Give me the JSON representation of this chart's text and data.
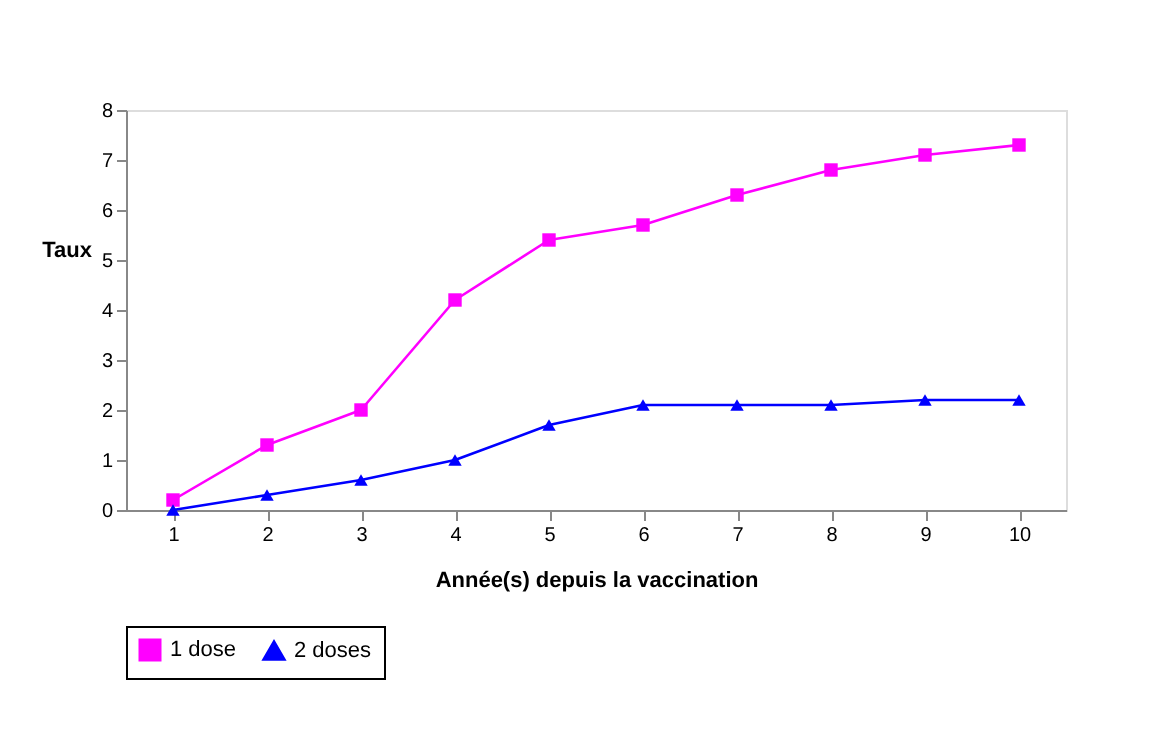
{
  "chart_data": {
    "type": "line",
    "xlabel": "Année(s) depuis la vaccination",
    "ylabel": "Taux",
    "categories": [
      "1",
      "2",
      "3",
      "4",
      "5",
      "6",
      "7",
      "8",
      "9",
      "10"
    ],
    "series": [
      {
        "name": "1 dose",
        "color": "#ff00ff",
        "marker": "square",
        "values": [
          0.2,
          1.3,
          2.0,
          4.2,
          5.4,
          5.7,
          6.3,
          6.8,
          7.1,
          7.3
        ]
      },
      {
        "name": "2 doses",
        "color": "#0000ff",
        "marker": "triangle",
        "values": [
          0.0,
          0.3,
          0.6,
          1.0,
          1.7,
          2.1,
          2.1,
          2.1,
          2.2,
          2.2
        ]
      }
    ],
    "ylim": [
      0,
      8
    ],
    "yticks": [
      0,
      1,
      2,
      3,
      4,
      5,
      6,
      7,
      8
    ],
    "grid": false,
    "legend": "bottom"
  }
}
